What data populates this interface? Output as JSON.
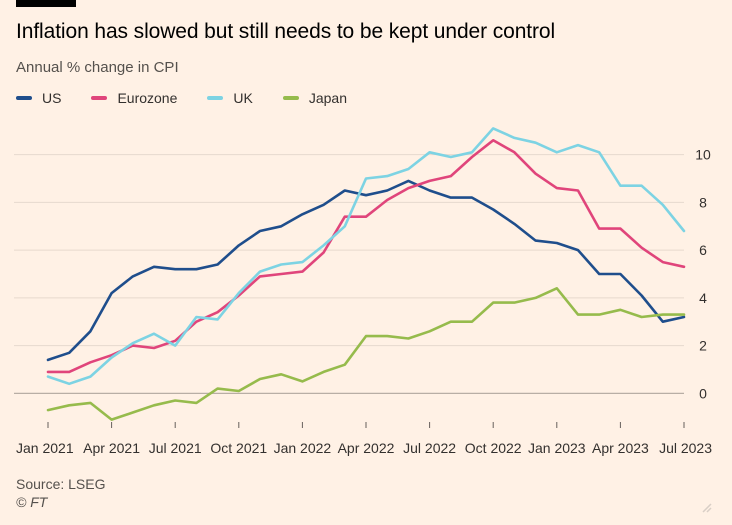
{
  "header": {
    "title": "Inflation has slowed but still needs to be kept under control",
    "subtitle": "Annual % change in CPI"
  },
  "footer": {
    "source": "Source: LSEG",
    "copyright": "© FT"
  },
  "chart_data": {
    "type": "line",
    "title": "Inflation has slowed but still needs to be kept under control",
    "subtitle": "Annual % change in CPI",
    "xlabel": "",
    "ylabel": "",
    "ylim": [
      -1.2,
      11.2
    ],
    "y_ticks": [
      0,
      2,
      4,
      6,
      8,
      10
    ],
    "grid": true,
    "legend_position": "top-left",
    "x_tick_labels": [
      "Jan 2021",
      "Apr 2021",
      "Jul 2021",
      "Oct 2021",
      "Jan 2022",
      "Apr 2022",
      "Jul 2022",
      "Oct 2022",
      "Jan 2023",
      "Apr 2023",
      "Jul 2023"
    ],
    "x": [
      "Jan 2021",
      "Feb 2021",
      "Mar 2021",
      "Apr 2021",
      "May 2021",
      "Jun 2021",
      "Jul 2021",
      "Aug 2021",
      "Sep 2021",
      "Oct 2021",
      "Nov 2021",
      "Dec 2021",
      "Jan 2022",
      "Feb 2022",
      "Mar 2022",
      "Apr 2022",
      "May 2022",
      "Jun 2022",
      "Jul 2022",
      "Aug 2022",
      "Sep 2022",
      "Oct 2022",
      "Nov 2022",
      "Dec 2022",
      "Jan 2023",
      "Feb 2023",
      "Mar 2023",
      "Apr 2023",
      "May 2023",
      "Jun 2023",
      "Jul 2023"
    ],
    "series": [
      {
        "name": "US",
        "color": "#1f4e8c",
        "values": [
          1.4,
          1.7,
          2.6,
          4.2,
          4.9,
          5.3,
          5.2,
          5.2,
          5.4,
          6.2,
          6.8,
          7.0,
          7.5,
          7.9,
          8.5,
          8.3,
          8.5,
          8.9,
          8.5,
          8.2,
          8.2,
          7.7,
          7.1,
          6.4,
          6.3,
          6.0,
          5.0,
          5.0,
          4.1,
          3.0,
          3.2
        ]
      },
      {
        "name": "Eurozone",
        "color": "#e0457b",
        "values": [
          0.9,
          0.9,
          1.3,
          1.6,
          2.0,
          1.9,
          2.2,
          3.0,
          3.4,
          4.1,
          4.9,
          5.0,
          5.1,
          5.9,
          7.4,
          7.4,
          8.1,
          8.6,
          8.9,
          9.1,
          9.9,
          10.6,
          10.1,
          9.2,
          8.6,
          8.5,
          6.9,
          6.9,
          6.1,
          5.5,
          5.3
        ]
      },
      {
        "name": "UK",
        "color": "#7dd3e3",
        "values": [
          0.7,
          0.4,
          0.7,
          1.5,
          2.1,
          2.5,
          2.0,
          3.2,
          3.1,
          4.2,
          5.1,
          5.4,
          5.5,
          6.2,
          7.0,
          9.0,
          9.1,
          9.4,
          10.1,
          9.9,
          10.1,
          11.1,
          10.7,
          10.5,
          10.1,
          10.4,
          10.1,
          8.7,
          8.7,
          7.9,
          6.8
        ]
      },
      {
        "name": "Japan",
        "color": "#96bb4c",
        "values": [
          -0.7,
          -0.5,
          -0.4,
          -1.1,
          -0.8,
          -0.5,
          -0.3,
          -0.4,
          0.2,
          0.1,
          0.6,
          0.8,
          0.5,
          0.9,
          1.2,
          2.4,
          2.4,
          2.3,
          2.6,
          3.0,
          3.0,
          3.8,
          3.8,
          4.0,
          4.4,
          3.3,
          3.3,
          3.5,
          3.2,
          3.3,
          3.3
        ]
      }
    ]
  }
}
